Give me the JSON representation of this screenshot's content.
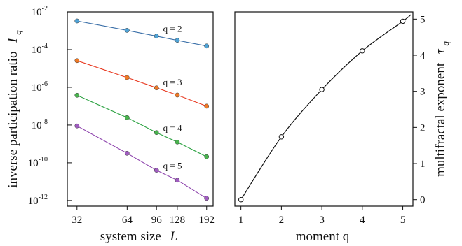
{
  "chart_data": [
    {
      "type": "line",
      "xscale": "log",
      "yscale": "log",
      "x": [
        32,
        64,
        96,
        128,
        192
      ],
      "xticks": [
        "32",
        "64",
        "96",
        "128",
        "192"
      ],
      "xlim": [
        28,
        210
      ],
      "ylim": [
        5e-13,
        0.01
      ],
      "yticks": [
        {
          "value": 0.01,
          "base": "10",
          "exp": "-2"
        },
        {
          "value": 0.0001,
          "base": "10",
          "exp": "-4"
        },
        {
          "value": 1e-06,
          "base": "10",
          "exp": "-6"
        },
        {
          "value": 1e-08,
          "base": "10",
          "exp": "-8"
        },
        {
          "value": 1e-10,
          "base": "10",
          "exp": "-10"
        },
        {
          "value": 1e-12,
          "base": "10",
          "exp": "-12"
        }
      ],
      "xlabel": {
        "text": "system size",
        "var": "L"
      },
      "ylabel": {
        "text": "inverse participation ratio",
        "var": "I",
        "sub": "q"
      },
      "grid": false,
      "series": [
        {
          "name": "q = 2",
          "color": "#3a6fa8",
          "marker_color": "#4fa3d6",
          "values": [
            0.0033,
            0.00105,
            0.00052,
            0.00031,
            0.000155
          ]
        },
        {
          "name": "q = 3",
          "color": "#e8381f",
          "marker_color": "#f07a26",
          "values": [
            2.6e-05,
            3.3e-06,
            9.4e-07,
            3.9e-07,
            1e-07
          ]
        },
        {
          "name": "q = 4",
          "color": "#2aa140",
          "marker_color": "#49b34e",
          "values": [
            3.8e-07,
            2.5e-08,
            4e-09,
            1.25e-09,
            2.1e-10
          ]
        },
        {
          "name": "q = 5",
          "color": "#8e44ad",
          "marker_color": "#a05cc0",
          "values": [
            9e-09,
            3.2e-10,
            4e-11,
            1.2e-11,
            1.3e-12
          ]
        }
      ]
    },
    {
      "type": "line",
      "x": [
        1,
        2,
        3,
        4,
        5
      ],
      "values": [
        0,
        1.74,
        3.05,
        4.12,
        4.94
      ],
      "xticks": [
        "1",
        "2",
        "3",
        "4",
        "5"
      ],
      "yticks": [
        "0",
        "1",
        "2",
        "3",
        "4",
        "5"
      ],
      "xlim": [
        0.85,
        5.25
      ],
      "ylim": [
        -0.18,
        5.2
      ],
      "xlabel": {
        "text": "moment q"
      },
      "ylabel": {
        "text": "multifractal exponent",
        "var": "τ",
        "sub": "q"
      },
      "grid": false,
      "line_color": "#111111",
      "marker": "open-circle"
    }
  ]
}
